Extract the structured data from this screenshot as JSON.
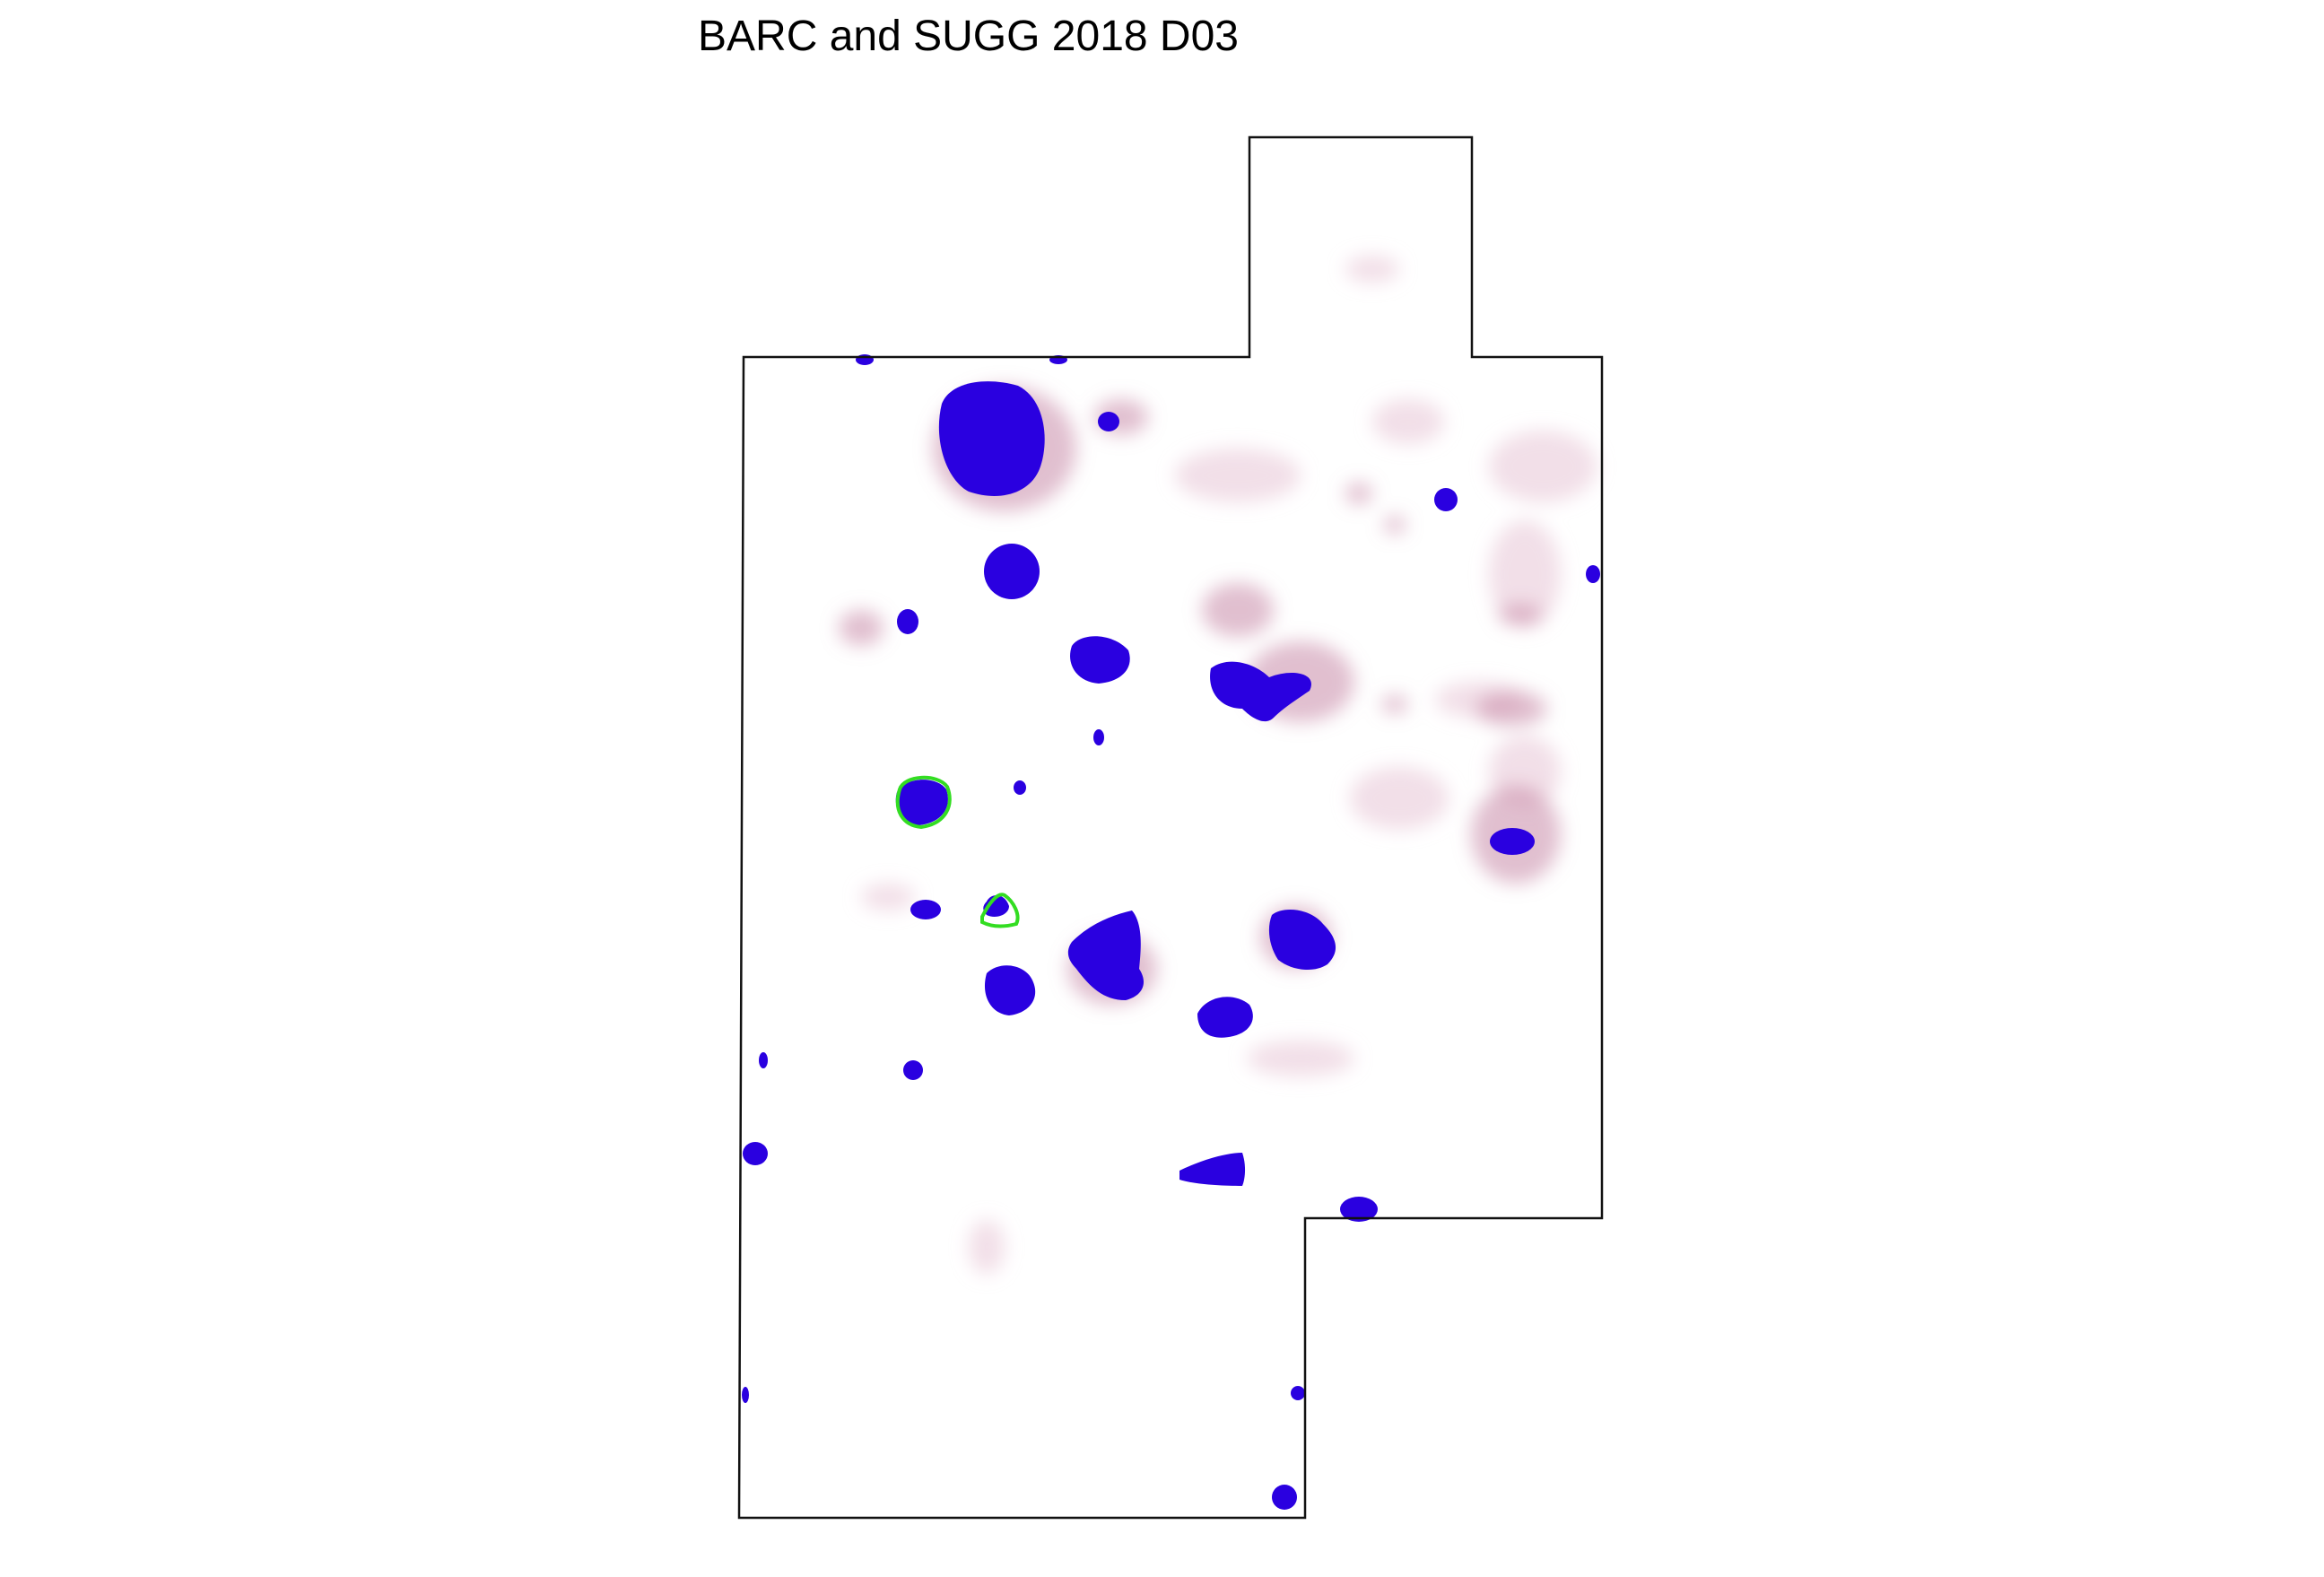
{
  "title": "BARC and SUGG 2018 D03",
  "colors": {
    "blob": "#2a00e0",
    "halo": "#c98aa8",
    "halo_faint": "#e9c9d8",
    "outline_highlight": "#33dd22",
    "boundary": "#111111",
    "background": "#ffffff"
  }
}
